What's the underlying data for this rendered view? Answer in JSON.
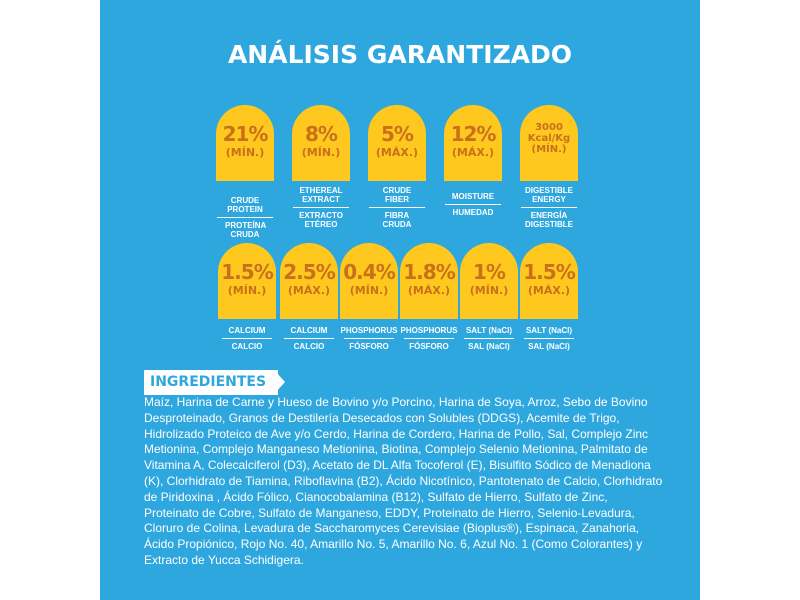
{
  "title": "ANÁLISIS GARANTIZADO",
  "row1": [
    {
      "value": "21%",
      "qualifier": "(MÍN.)",
      "en": "CRUDE PROTEIN",
      "es": "PROTEÍNA CRUDA"
    },
    {
      "value": "8%",
      "qualifier": "(MÍN.)",
      "en": "ETHEREAL EXTRACT",
      "es": "EXTRACTO ETÉREO"
    },
    {
      "value": "5%",
      "qualifier": "(MÁX.)",
      "en": "CRUDE FIBER",
      "es": "FIBRA CRUDA"
    },
    {
      "value": "12%",
      "qualifier": "(MÁX.)",
      "en": "MOISTURE",
      "es": "HUMEDAD"
    },
    {
      "value": "3000 Kcal/Kg",
      "qualifier": "(MÍN.)",
      "en": "DIGESTIBLE ENERGY",
      "es": "ENERGÍA DIGESTIBLE"
    }
  ],
  "row2": [
    {
      "value": "1.5%",
      "qualifier": "(MÍN.)",
      "en": "CALCIUM",
      "es": "CALCIO"
    },
    {
      "value": "2.5%",
      "qualifier": "(MÁX.)",
      "en": "CALCIUM",
      "es": "CALCIO"
    },
    {
      "value": "0.4%",
      "qualifier": "(MÍN.)",
      "en": "PHOSPHORUS",
      "es": "FÓSFORO"
    },
    {
      "value": "1.8%",
      "qualifier": "(MÁX.)",
      "en": "PHOSPHORUS",
      "es": "FÓSFORO"
    },
    {
      "value": "1%",
      "qualifier": "(MÍN.)",
      "en": "SALT (NaCl)",
      "es": "SAL (NaCl)"
    },
    {
      "value": "1.5%",
      "qualifier": "(MÁX.)",
      "en": "SALT (NaCl)",
      "es": "SAL (NaCl)"
    }
  ],
  "ingredients_heading": "INGREDIENTES",
  "ingredients_text": "Maíz, Harina de Carne y Hueso de Bovino y/o Porcino, Harina de Soya, Arroz, Sebo de Bovino Desproteinado, Granos de Destilería Desecados con Solubles (DDGS), Acemite de Trigo, Hidrolizado Proteico de Ave y/o Cerdo, Harina de Cordero, Harina de Pollo, Sal, Complejo Zinc Metionina, Complejo Manganeso Metionina, Biotina, Complejo Selenio Metionina, Palmitato de Vitamina A, Colecalciferol (D3), Acetato de DL Alfa Tocoferol (E), Bisulfito Sódico de Menadiona (K), Clorhidrato de Tiamina, Riboflavina (B2), Ácido Nicotínico, Pantotenato de Calcio, Clorhidrato de Piridoxina , Ácido Fólico, Cianocobalamina (B12), Sulfato de Hierro, Sulfato de Zinc, Proteinato de Cobre, Sulfato de Manganeso, EDDY, Proteinato de Hierro, Selenio-Levadura, Cloruro de Colina, Levadura de Saccharomyces Cerevisiae (Bioplus®), Espinaca, Zanahoria, Ácido Propiónico, Rojo No. 40, Amarillo No. 5, Amarillo No. 6, Azul No. 1 (Como Colorantes) y Extracto de Yucca Schidigera."
}
